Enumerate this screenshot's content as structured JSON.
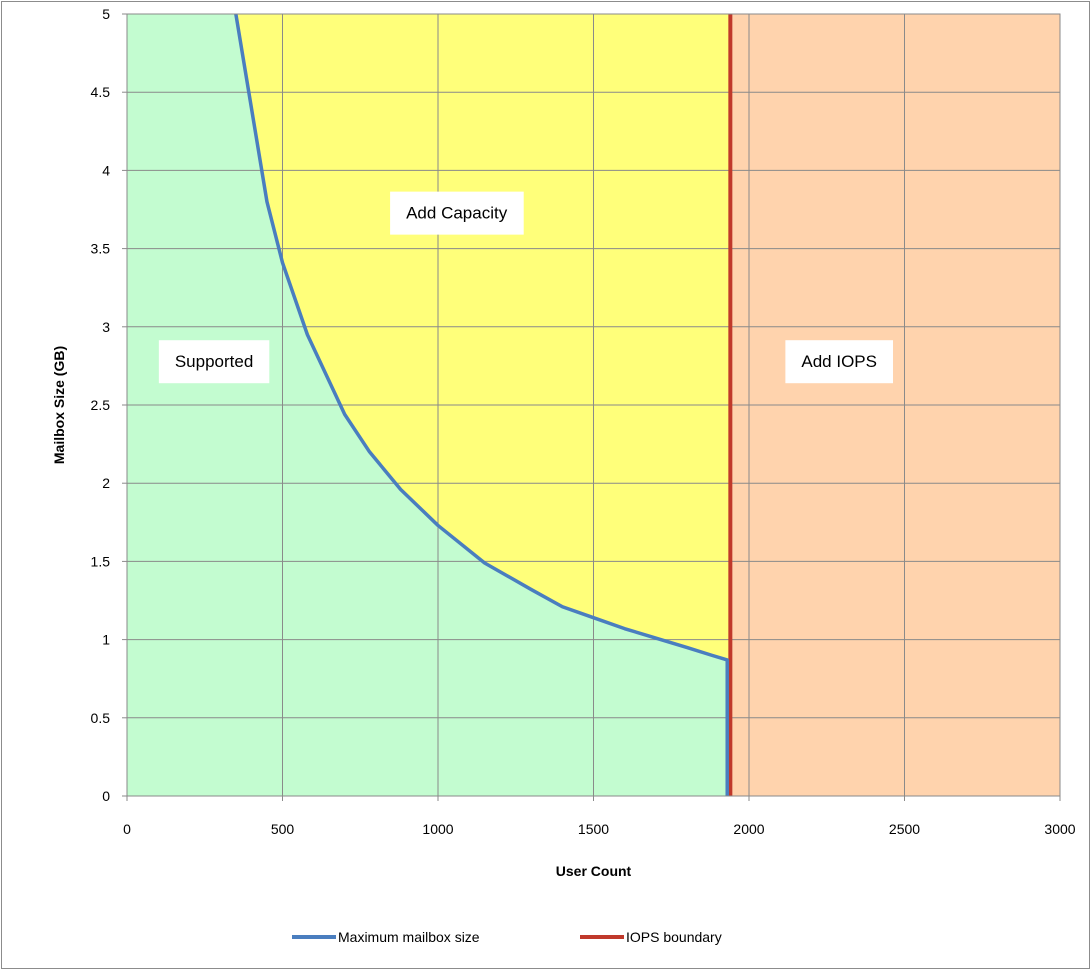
{
  "chart_data": {
    "type": "area",
    "xlabel": "User Count",
    "ylabel": "Mailbox Size (GB)",
    "xlim": [
      0,
      3000
    ],
    "ylim": [
      0,
      5
    ],
    "x_ticks": [
      "0",
      "500",
      "1000",
      "1500",
      "2000",
      "2500",
      "3000"
    ],
    "y_ticks": [
      "0",
      "0.5",
      "1",
      "1.5",
      "2",
      "2.5",
      "3",
      "3.5",
      "4",
      "4.5",
      "5"
    ],
    "grid": true,
    "legend_position": "bottom",
    "regions": [
      {
        "label": "Supported",
        "color": "#c3fcd0",
        "label_at": [
          280,
          2.78
        ]
      },
      {
        "label": "Add Capacity",
        "color": "#ffff7a",
        "label_at": [
          1060,
          3.73
        ]
      },
      {
        "label": "Add IOPS",
        "color": "#ffd3ad",
        "label_at": [
          2290,
          2.78
        ]
      }
    ],
    "series": [
      {
        "name": "Maximum mailbox size",
        "color": "#4a7ebf",
        "x": [
          350,
          370,
          400,
          450,
          500,
          580,
          700,
          780,
          880,
          1000,
          1150,
          1300,
          1400,
          1500,
          1600,
          1700,
          1800,
          1880,
          1930,
          1930
        ],
        "y": [
          5,
          4.76,
          4.4,
          3.8,
          3.41,
          2.95,
          2.44,
          2.2,
          1.96,
          1.73,
          1.49,
          1.32,
          1.21,
          1.14,
          1.07,
          1.01,
          0.95,
          0.9,
          0.87,
          0
        ]
      },
      {
        "name": "IOPS boundary",
        "color": "#c0392b",
        "x": [
          1940,
          1940
        ],
        "y": [
          0,
          5
        ]
      }
    ]
  }
}
